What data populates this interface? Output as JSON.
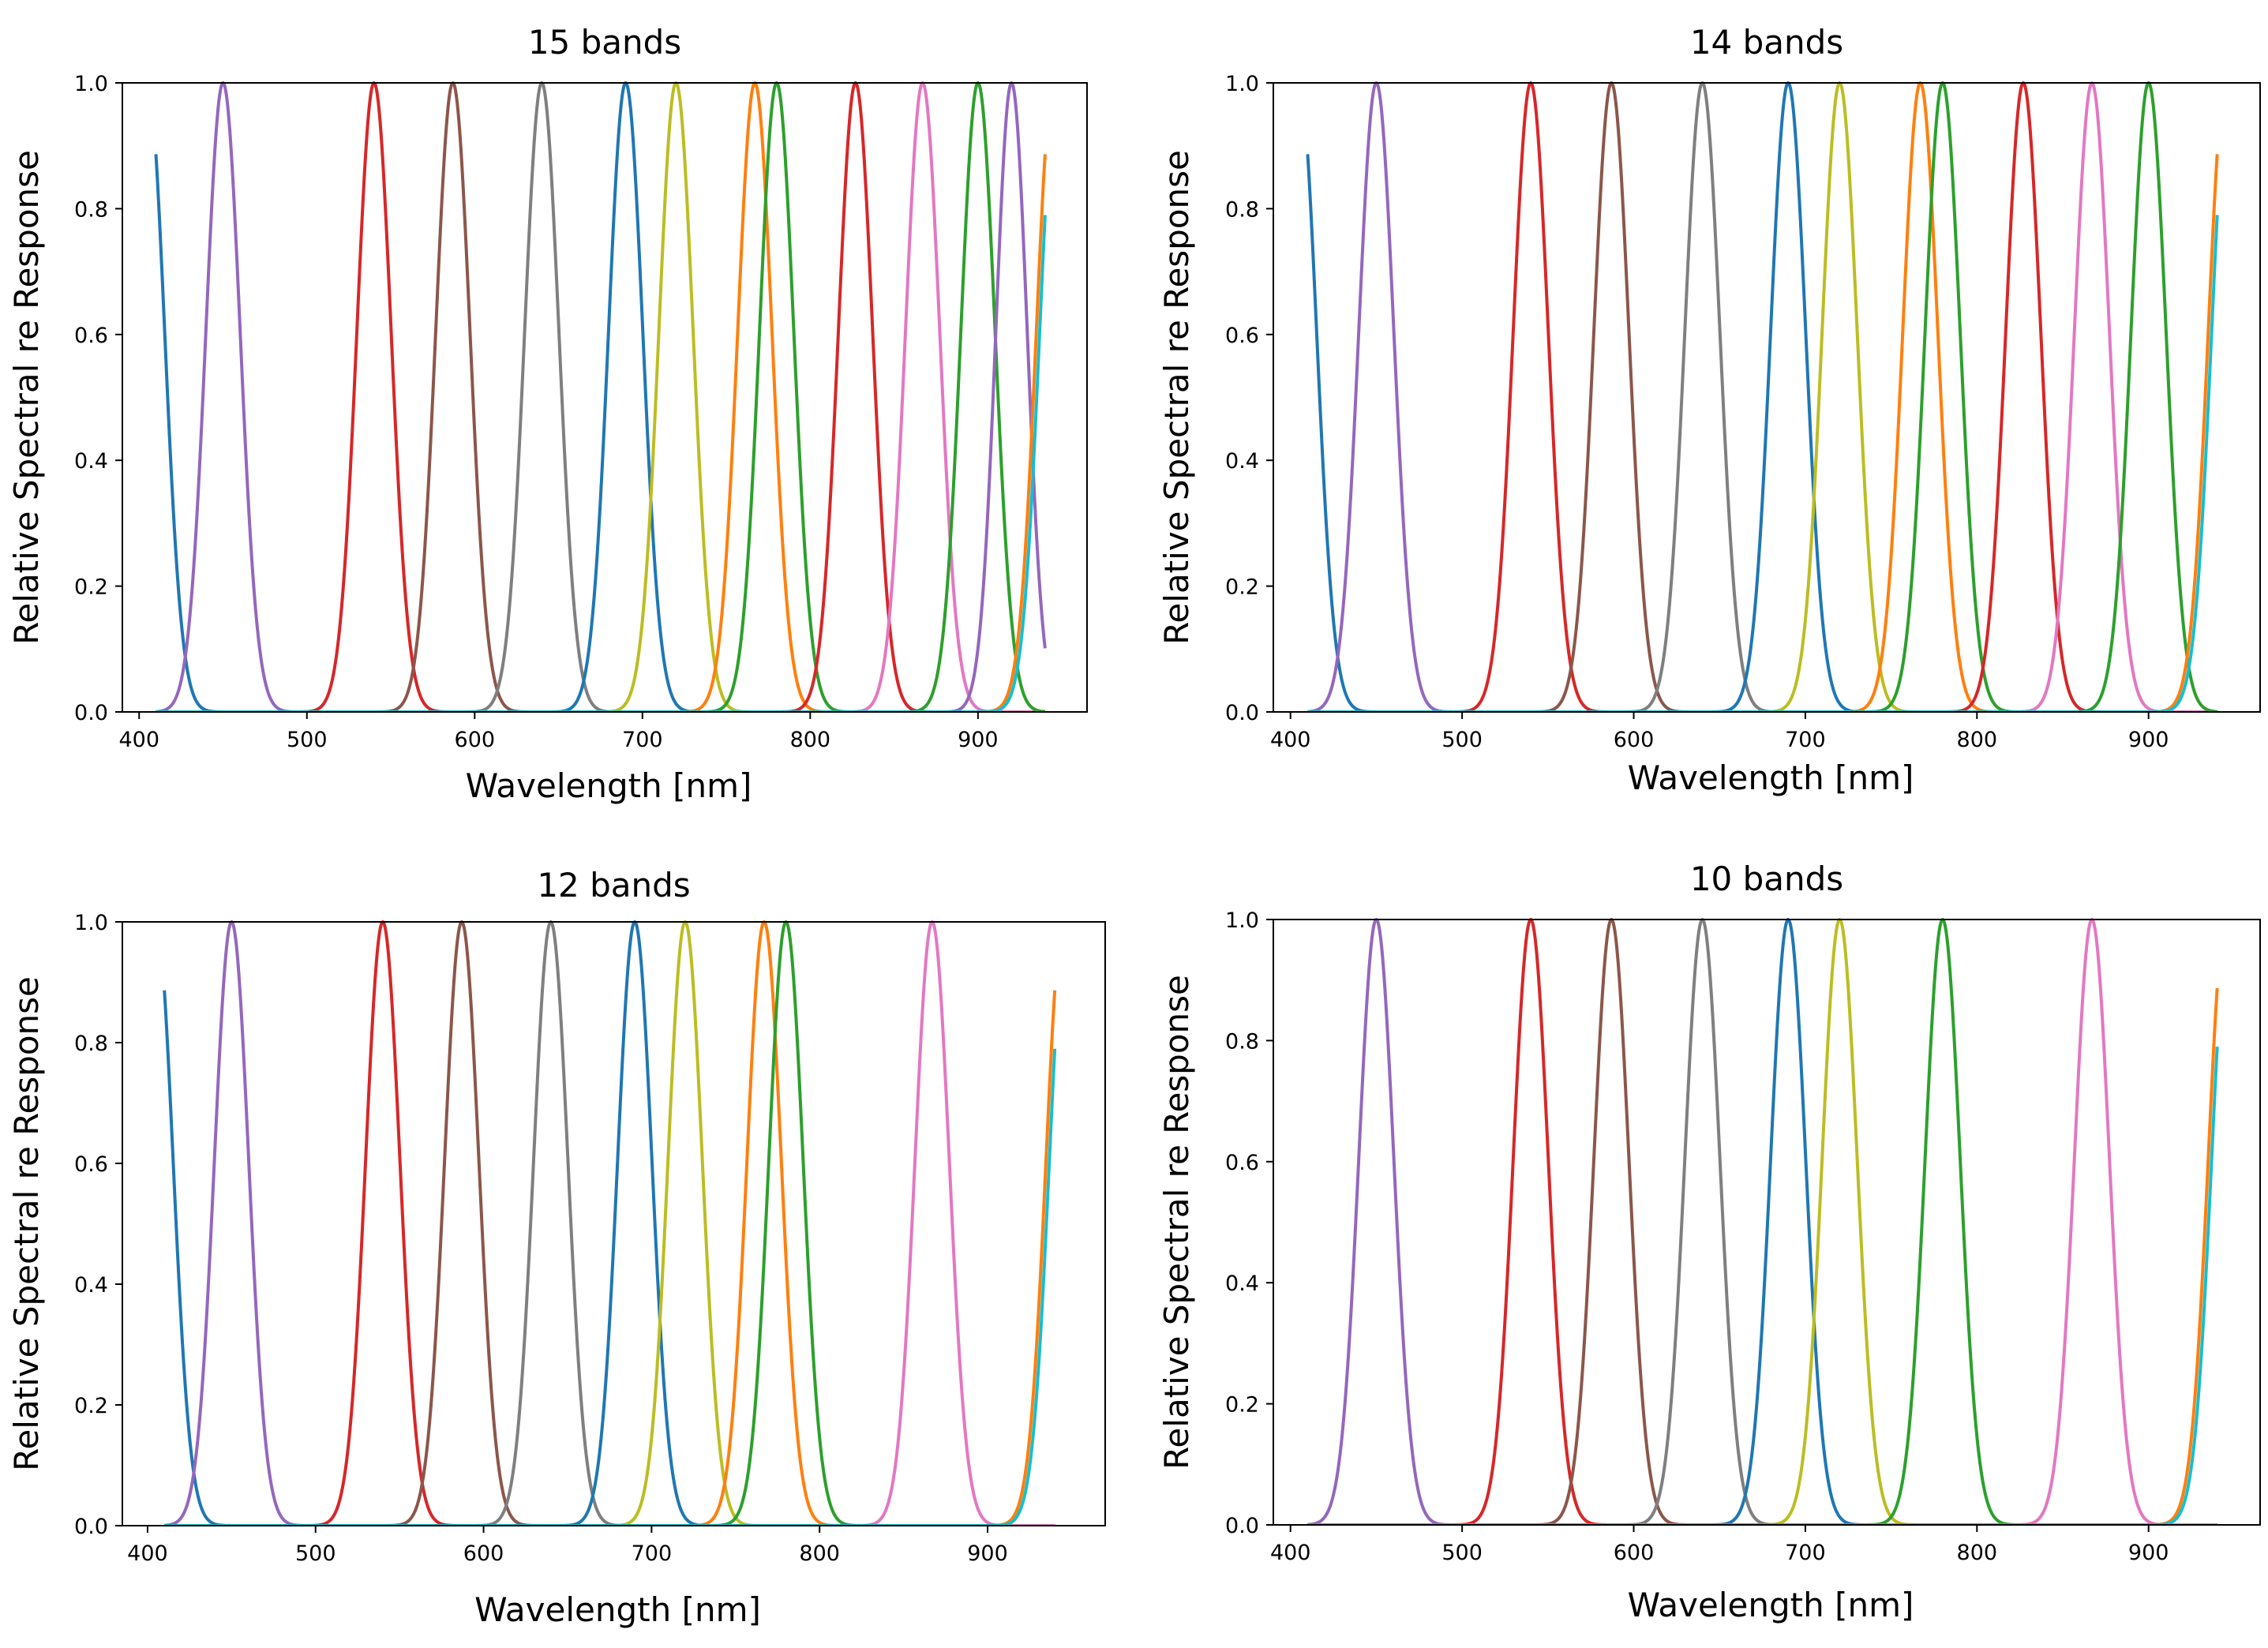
{
  "figure": {
    "palette": {
      "tab-blue": "#1f77b4",
      "tab-orange": "#ff7f0e",
      "tab-green": "#2ca02c",
      "tab-red": "#d62728",
      "tab-purple": "#9467bd",
      "tab-brown": "#8c564b",
      "tab-pink": "#e377c2",
      "tab-gray": "#7f7f7f",
      "tab-olive": "#bcbd22",
      "tab-cyan": "#17becf"
    }
  },
  "chart_data": [
    {
      "type": "line",
      "title": "15 bands",
      "xlabel": "Wavelength [nm]",
      "ylabel": "Relative Spectral re Response",
      "xlim": [
        390,
        965
      ],
      "ylim": [
        0,
        1.0
      ],
      "xticks": [
        "400",
        "500",
        "600",
        "700",
        "800",
        "900"
      ],
      "yticks": [
        "0.0",
        "0.2",
        "0.4",
        "0.6",
        "0.8",
        "1.0"
      ],
      "grid": false,
      "x_range": [
        410,
        940
      ],
      "bands": [
        {
          "center": 405,
          "fwhm": 24,
          "color": "#1f77b4"
        },
        {
          "center": 450,
          "fwhm": 24,
          "color": "#9467bd"
        },
        {
          "center": 540,
          "fwhm": 24,
          "color": "#d62728"
        },
        {
          "center": 587,
          "fwhm": 24,
          "color": "#8c564b"
        },
        {
          "center": 640,
          "fwhm": 24,
          "color": "#7f7f7f"
        },
        {
          "center": 690,
          "fwhm": 24,
          "color": "#1f77b4"
        },
        {
          "center": 720,
          "fwhm": 24,
          "color": "#bcbd22"
        },
        {
          "center": 767,
          "fwhm": 24,
          "color": "#ff7f0e"
        },
        {
          "center": 780,
          "fwhm": 24,
          "color": "#2ca02c"
        },
        {
          "center": 827,
          "fwhm": 24,
          "color": "#d62728"
        },
        {
          "center": 867,
          "fwhm": 24,
          "color": "#e377c2"
        },
        {
          "center": 900,
          "fwhm": 24,
          "color": "#2ca02c"
        },
        {
          "center": 920,
          "fwhm": 22,
          "color": "#9467bd"
        },
        {
          "center": 945,
          "fwhm": 24,
          "color": "#ff7f0e"
        },
        {
          "center": 947,
          "fwhm": 24,
          "color": "#17becf"
        }
      ]
    },
    {
      "type": "line",
      "title": "14 bands",
      "xlabel": "Wavelength [nm]",
      "ylabel": "Relative Spectral re Response",
      "xlim": [
        390,
        965
      ],
      "ylim": [
        0,
        1.0
      ],
      "xticks": [
        "400",
        "500",
        "600",
        "700",
        "800",
        "900"
      ],
      "yticks": [
        "0.0",
        "0.2",
        "0.4",
        "0.6",
        "0.8",
        "1.0"
      ],
      "grid": false,
      "x_range": [
        410,
        940
      ],
      "bands": [
        {
          "center": 405,
          "fwhm": 24,
          "color": "#1f77b4"
        },
        {
          "center": 450,
          "fwhm": 24,
          "color": "#9467bd"
        },
        {
          "center": 540,
          "fwhm": 24,
          "color": "#d62728"
        },
        {
          "center": 587,
          "fwhm": 24,
          "color": "#8c564b"
        },
        {
          "center": 640,
          "fwhm": 24,
          "color": "#7f7f7f"
        },
        {
          "center": 690,
          "fwhm": 24,
          "color": "#1f77b4"
        },
        {
          "center": 720,
          "fwhm": 24,
          "color": "#bcbd22"
        },
        {
          "center": 767,
          "fwhm": 24,
          "color": "#ff7f0e"
        },
        {
          "center": 780,
          "fwhm": 24,
          "color": "#2ca02c"
        },
        {
          "center": 827,
          "fwhm": 24,
          "color": "#d62728"
        },
        {
          "center": 867,
          "fwhm": 24,
          "color": "#e377c2"
        },
        {
          "center": 900,
          "fwhm": 24,
          "color": "#2ca02c"
        },
        {
          "center": 945,
          "fwhm": 24,
          "color": "#ff7f0e"
        },
        {
          "center": 947,
          "fwhm": 24,
          "color": "#17becf"
        }
      ]
    },
    {
      "type": "line",
      "title": "12 bands",
      "xlabel": "Wavelength [nm]",
      "ylabel": "Relative Spectral re Response",
      "xlim": [
        385,
        970
      ],
      "ylim": [
        0,
        1.0
      ],
      "xticks": [
        "400",
        "500",
        "600",
        "700",
        "800",
        "900"
      ],
      "yticks": [
        "0.0",
        "0.2",
        "0.4",
        "0.6",
        "0.8",
        "1.0"
      ],
      "grid": false,
      "x_range": [
        410,
        940
      ],
      "bands": [
        {
          "center": 405,
          "fwhm": 24,
          "color": "#1f77b4"
        },
        {
          "center": 450,
          "fwhm": 24,
          "color": "#9467bd"
        },
        {
          "center": 540,
          "fwhm": 24,
          "color": "#d62728"
        },
        {
          "center": 587,
          "fwhm": 24,
          "color": "#8c564b"
        },
        {
          "center": 640,
          "fwhm": 24,
          "color": "#7f7f7f"
        },
        {
          "center": 690,
          "fwhm": 24,
          "color": "#1f77b4"
        },
        {
          "center": 720,
          "fwhm": 24,
          "color": "#bcbd22"
        },
        {
          "center": 767,
          "fwhm": 24,
          "color": "#ff7f0e"
        },
        {
          "center": 780,
          "fwhm": 24,
          "color": "#2ca02c"
        },
        {
          "center": 867,
          "fwhm": 24,
          "color": "#e377c2"
        },
        {
          "center": 945,
          "fwhm": 24,
          "color": "#ff7f0e"
        },
        {
          "center": 947,
          "fwhm": 24,
          "color": "#17becf"
        }
      ]
    },
    {
      "type": "line",
      "title": "10 bands",
      "xlabel": "Wavelength [nm]",
      "ylabel": "Relative Spectral re Response",
      "xlim": [
        390,
        965
      ],
      "ylim": [
        0,
        1.0
      ],
      "xticks": [
        "400",
        "500",
        "600",
        "700",
        "800",
        "900"
      ],
      "yticks": [
        "0.0",
        "0.2",
        "0.4",
        "0.6",
        "0.8",
        "1.0"
      ],
      "grid": false,
      "x_range": [
        410,
        940
      ],
      "bands": [
        {
          "center": 450,
          "fwhm": 24,
          "color": "#9467bd"
        },
        {
          "center": 540,
          "fwhm": 24,
          "color": "#d62728"
        },
        {
          "center": 587,
          "fwhm": 24,
          "color": "#8c564b"
        },
        {
          "center": 640,
          "fwhm": 24,
          "color": "#7f7f7f"
        },
        {
          "center": 690,
          "fwhm": 24,
          "color": "#1f77b4"
        },
        {
          "center": 720,
          "fwhm": 24,
          "color": "#bcbd22"
        },
        {
          "center": 780,
          "fwhm": 24,
          "color": "#2ca02c"
        },
        {
          "center": 867,
          "fwhm": 24,
          "color": "#e377c2"
        },
        {
          "center": 945,
          "fwhm": 24,
          "color": "#ff7f0e"
        },
        {
          "center": 947,
          "fwhm": 24,
          "color": "#17becf"
        }
      ]
    }
  ]
}
